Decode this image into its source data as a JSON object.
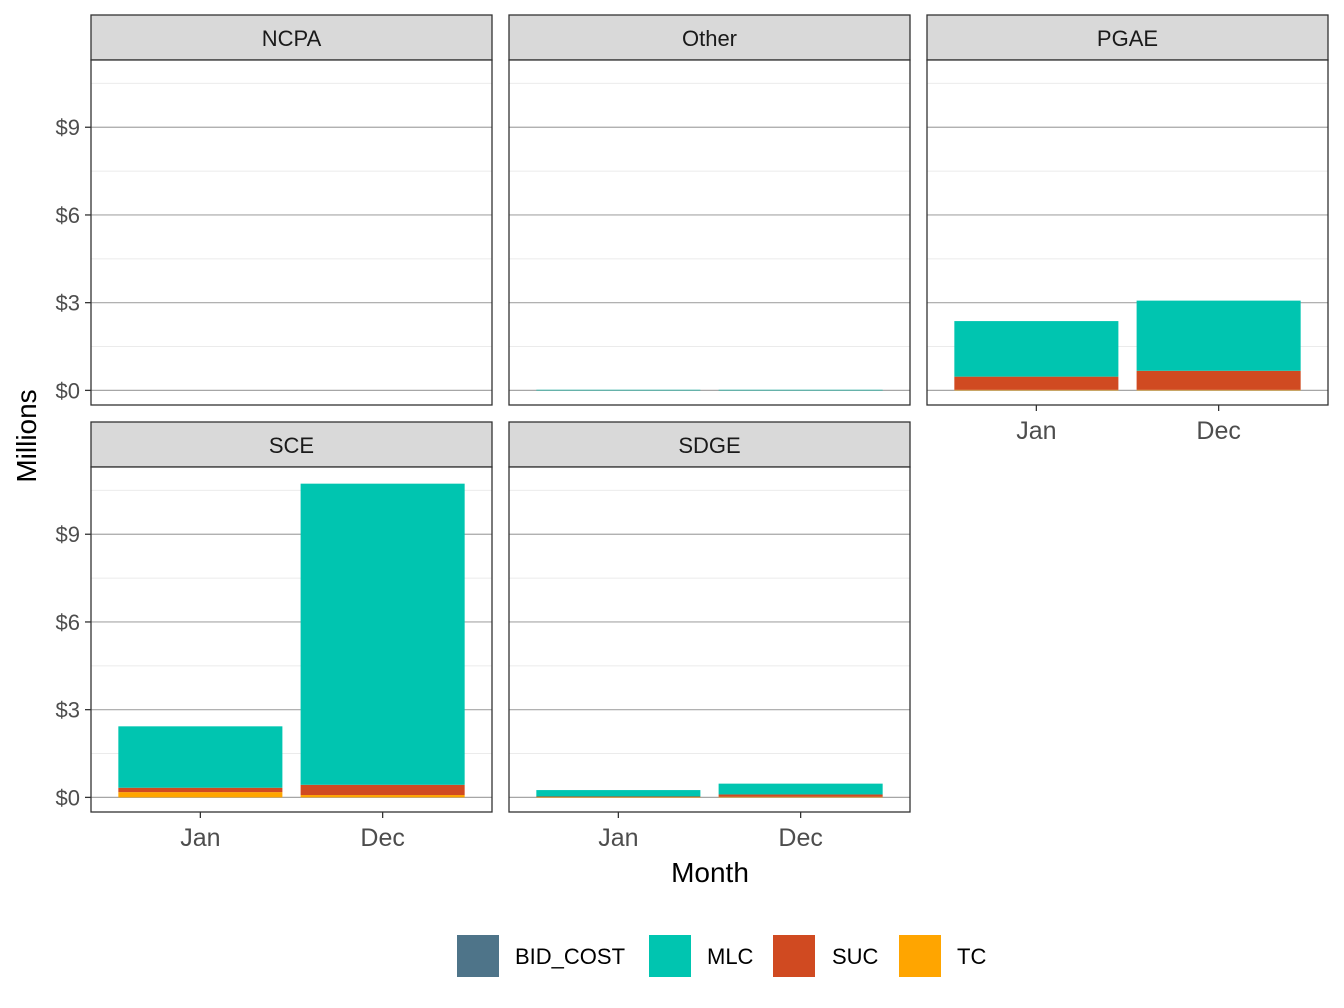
{
  "chart_data": {
    "type": "bar",
    "stacked": true,
    "faceted": true,
    "xlabel": "Month",
    "ylabel": "Millions",
    "categories": [
      "Jan",
      "Dec"
    ],
    "ylim": [
      -0.5,
      11.3
    ],
    "yticks": [
      0,
      3,
      6,
      9
    ],
    "ytick_labels": [
      "$0",
      "$3",
      "$6",
      "$9"
    ],
    "grid": true,
    "legend_position": "bottom",
    "legend": [
      "BID_COST",
      "MLC",
      "SUC",
      "TC"
    ],
    "colors": {
      "BID_COST": "#4e7489",
      "MLC": "#00c5b0",
      "SUC": "#d04a21",
      "TC": "#ffa500"
    },
    "panels": [
      {
        "name": "NCPA",
        "series": [
          {
            "name": "BID_COST",
            "values": [
              0,
              0
            ]
          },
          {
            "name": "MLC",
            "values": [
              0,
              0
            ]
          },
          {
            "name": "SUC",
            "values": [
              0,
              0
            ]
          },
          {
            "name": "TC",
            "values": [
              0,
              0
            ]
          }
        ]
      },
      {
        "name": "Other",
        "series": [
          {
            "name": "BID_COST",
            "values": [
              0,
              0
            ]
          },
          {
            "name": "MLC",
            "values": [
              0.02,
              0.02
            ]
          },
          {
            "name": "SUC",
            "values": [
              0,
              0
            ]
          },
          {
            "name": "TC",
            "values": [
              0,
              0
            ]
          }
        ]
      },
      {
        "name": "PGAE",
        "series": [
          {
            "name": "BID_COST",
            "values": [
              0,
              0
            ]
          },
          {
            "name": "MLC",
            "values": [
              1.9,
              2.4
            ]
          },
          {
            "name": "SUC",
            "values": [
              0.45,
              0.65
            ]
          },
          {
            "name": "TC",
            "values": [
              0.02,
              0.02
            ]
          }
        ]
      },
      {
        "name": "SCE",
        "series": [
          {
            "name": "BID_COST",
            "values": [
              0,
              0
            ]
          },
          {
            "name": "MLC",
            "values": [
              2.1,
              10.3
            ]
          },
          {
            "name": "SUC",
            "values": [
              0.15,
              0.35
            ]
          },
          {
            "name": "TC",
            "values": [
              0.18,
              0.08
            ]
          }
        ]
      },
      {
        "name": "SDGE",
        "series": [
          {
            "name": "BID_COST",
            "values": [
              0,
              0
            ]
          },
          {
            "name": "MLC",
            "values": [
              0.22,
              0.37
            ]
          },
          {
            "name": "SUC",
            "values": [
              0.02,
              0.08
            ]
          },
          {
            "name": "TC",
            "values": [
              0.01,
              0.02
            ]
          }
        ]
      }
    ]
  }
}
